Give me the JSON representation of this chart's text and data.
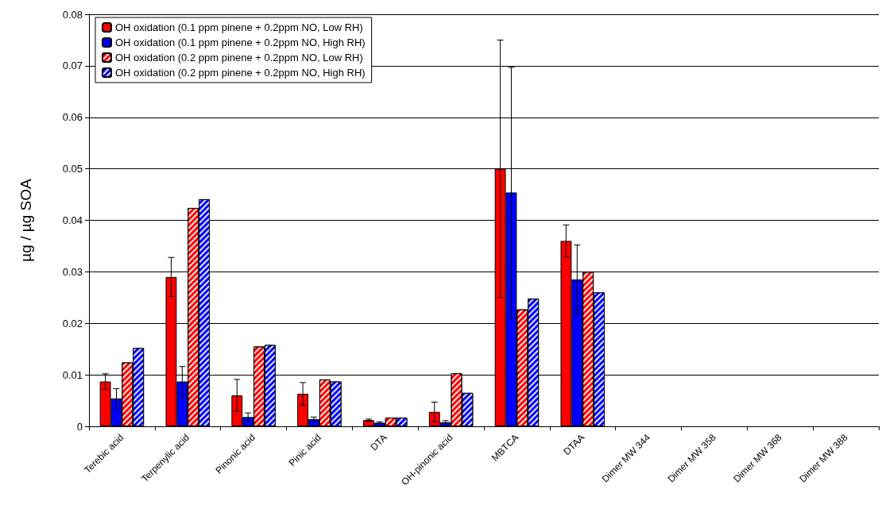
{
  "chart_data": {
    "type": "bar",
    "ylabel": "µg / µg SOA",
    "categories": [
      "Terebic acid",
      "Terpenylic acid",
      "Pinonic acid",
      "Pinic acid",
      "DTA",
      "OH-pinonic acid",
      "MBTCA",
      "DTAA",
      "Dimer MW 344",
      "Dimer MW 358",
      "Dimer MW 368",
      "Dimer MW 388"
    ],
    "series": [
      {
        "name": "OH oxidation (0.1 ppm pinene + 0.2ppm NO, Low RH)",
        "color": "#ff0000",
        "values": [
          0.0087,
          0.029,
          0.006,
          0.0063,
          0.0012,
          0.0028,
          0.05,
          0.036,
          0,
          0,
          0,
          0
        ],
        "errors": [
          0.0015,
          0.0038,
          0.0031,
          0.0022,
          0.0002,
          0.0019,
          0.025,
          0.0031,
          null,
          null,
          null,
          null
        ]
      },
      {
        "name": "OH oxidation (0.1 ppm pinene + 0.2ppm NO, High RH)",
        "color": "#0000ff",
        "values": [
          0.0054,
          0.0087,
          0.0018,
          0.0014,
          0.0007,
          0.0008,
          0.0454,
          0.0285,
          0,
          0,
          0,
          0
        ],
        "errors": [
          0.0019,
          0.0029,
          0.0008,
          0.0004,
          0.0002,
          0.0003,
          0.0243,
          0.0067,
          null,
          null,
          null,
          null
        ]
      },
      {
        "name": "OH oxidation (0.2 ppm pinene + 0.2ppm NO, Low RH)",
        "color": "#ff0000",
        "values": [
          0.0124,
          0.0424,
          0.0155,
          0.0091,
          0.0017,
          0.0103,
          0.0227,
          0.03,
          0,
          0,
          0,
          0
        ]
      },
      {
        "name": "OH oxidation (0.2 ppm pinene + 0.2ppm NO, High RH)",
        "color": "#0000ff",
        "values": [
          0.0152,
          0.0441,
          0.0158,
          0.0087,
          0.0017,
          0.0065,
          0.0248,
          0.026,
          0,
          0,
          0,
          0
        ]
      }
    ],
    "ylim": [
      0,
      0.08
    ],
    "yticks": [
      0,
      0.01,
      0.02,
      0.03,
      0.04,
      0.05,
      0.06,
      0.07,
      0.08
    ],
    "grid": "y",
    "legend": "top left"
  }
}
